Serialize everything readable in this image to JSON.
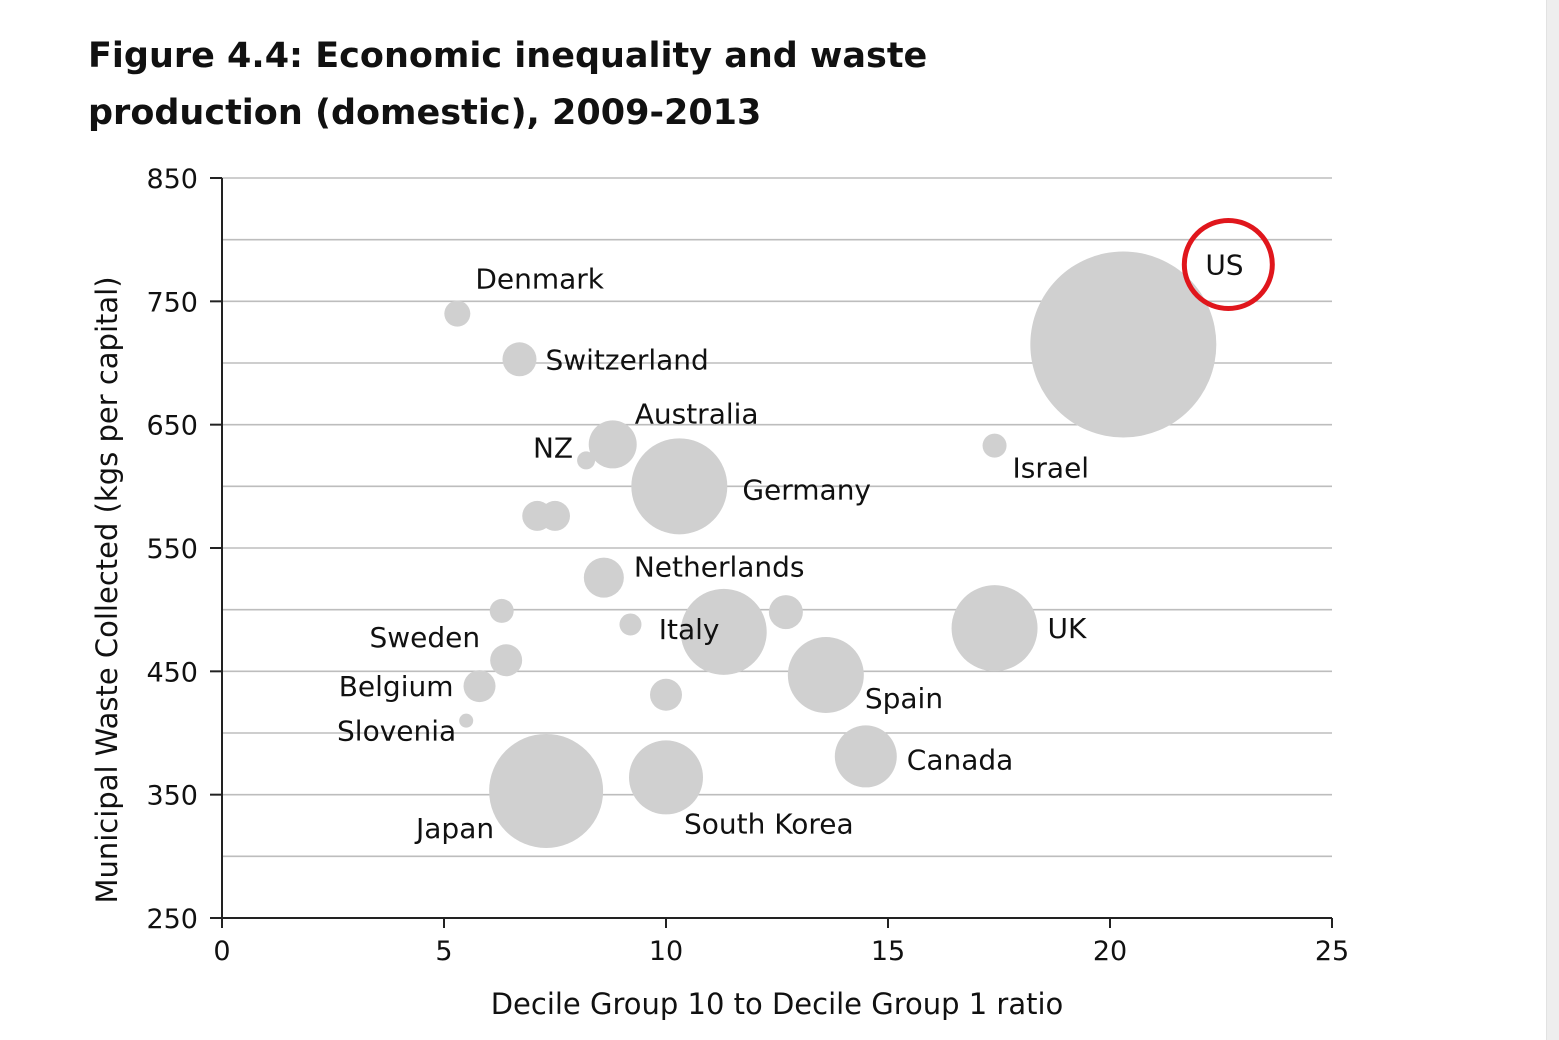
{
  "chart_data": {
    "type": "scatter",
    "title": "Figure 4.4: Economic inequality and waste production (domestic), 2009-2013",
    "xlabel": "Decile Group 10 to Decile Group 1 ratio",
    "ylabel": "Municipal Waste Collected (kgs per capital)",
    "xlim": [
      0,
      25
    ],
    "ylim": [
      250,
      850
    ],
    "xticks": [
      "0",
      "5",
      "10",
      "15",
      "20",
      "25"
    ],
    "yticks": [
      "250",
      "350",
      "450",
      "550",
      "650",
      "750",
      "850"
    ],
    "grid": "horizontal",
    "highlight": "US",
    "points": [
      {
        "label": "US",
        "x": 20.3,
        "y": 715,
        "size": 93
      },
      {
        "label": "Denmark",
        "x": 5.3,
        "y": 740,
        "size": 13
      },
      {
        "label": "Switzerland",
        "x": 6.7,
        "y": 703,
        "size": 17
      },
      {
        "label": "Australia",
        "x": 8.8,
        "y": 634,
        "size": 24
      },
      {
        "label": "NZ",
        "x": 8.2,
        "y": 621,
        "size": 9
      },
      {
        "label": "Germany",
        "x": 10.3,
        "y": 600,
        "size": 48
      },
      {
        "label": "Israel",
        "x": 17.4,
        "y": 633,
        "size": 12
      },
      {
        "label": "",
        "x": 7.1,
        "y": 576,
        "size": 15
      },
      {
        "label": "",
        "x": 7.5,
        "y": 576,
        "size": 15
      },
      {
        "label": "Netherlands",
        "x": 8.6,
        "y": 526,
        "size": 20
      },
      {
        "label": "",
        "x": 6.3,
        "y": 499,
        "size": 12
      },
      {
        "label": "",
        "x": 9.2,
        "y": 488,
        "size": 11
      },
      {
        "label": "Italy",
        "x": 11.3,
        "y": 482,
        "size": 43
      },
      {
        "label": "",
        "x": 12.7,
        "y": 498,
        "size": 17
      },
      {
        "label": "UK",
        "x": 17.4,
        "y": 485,
        "size": 43
      },
      {
        "label": "Sweden",
        "x": 6.4,
        "y": 459,
        "size": 16
      },
      {
        "label": "Belgium",
        "x": 5.8,
        "y": 438,
        "size": 16
      },
      {
        "label": "",
        "x": 10.0,
        "y": 431,
        "size": 16
      },
      {
        "label": "Spain",
        "x": 13.6,
        "y": 447,
        "size": 38
      },
      {
        "label": "Slovenia",
        "x": 5.5,
        "y": 410,
        "size": 7
      },
      {
        "label": "Canada",
        "x": 14.5,
        "y": 381,
        "size": 31
      },
      {
        "label": "Japan",
        "x": 7.3,
        "y": 353,
        "size": 57
      },
      {
        "label": "South Korea",
        "x": 10.0,
        "y": 364,
        "size": 37
      }
    ]
  }
}
